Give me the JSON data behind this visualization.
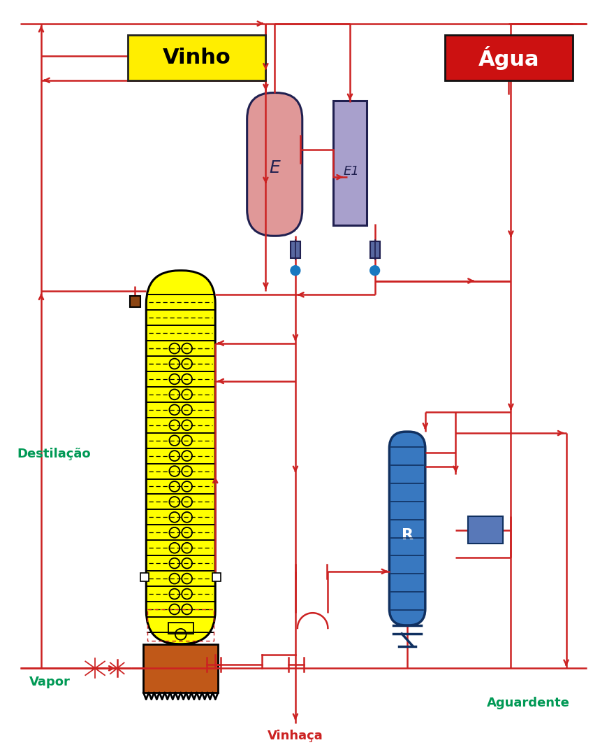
{
  "bg_color": "#ffffff",
  "lc": "#cc2222",
  "lw": 1.8,
  "vinho_label": "Vinho",
  "agua_label": "Água",
  "destilacao_label": "Destilação",
  "vapor_label": "Vapor",
  "vinhaca_label": "Vinhaça",
  "aguardente_label": "Aguardente",
  "E_label": "E",
  "E1_label": "E1",
  "R_label": "R",
  "col_color": "#ffff00",
  "E_color": "#e09898",
  "E1_color": "#a8a0cc",
  "R_color": "#3878c0",
  "brown_color": "#c05818",
  "dark_border": "#202050",
  "valve_color": "#5868a0",
  "green_text": "#009955",
  "vinho_bg": "#ffee00",
  "agua_bg": "#cc1111",
  "sm_box_color": "#5878b8"
}
